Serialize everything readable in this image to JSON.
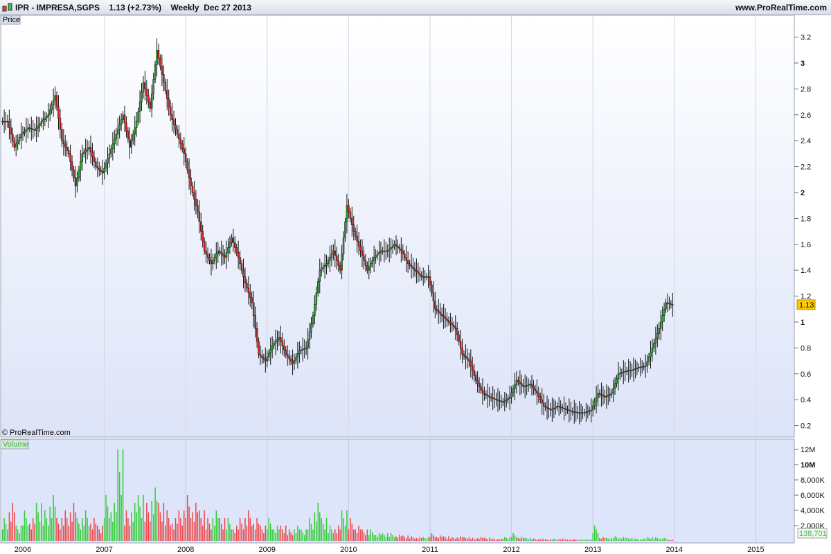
{
  "header": {
    "symbol": "IPR - IMPRESA,SGPS",
    "last": "1.13 (+2.73%)",
    "period": "Weekly",
    "date": "Dec 27 2013",
    "site": "www.ProRealTime.com"
  },
  "price_panel": {
    "label": "Price",
    "copyright": "© ProRealTime.com",
    "last_badge": "1.13"
  },
  "volume_panel": {
    "label": "Volume",
    "last_badge": "138,701"
  },
  "colors": {
    "up": "#22aa22",
    "down": "#dd2222",
    "volume_up": "#33cc33",
    "volume_down": "#ee4444",
    "last_badge_bg": "#ffcc00"
  },
  "chart_data": [
    {
      "type": "candlestick",
      "title": "Price",
      "x_tick_labels": [
        "2006",
        "2007",
        "2008",
        "2009",
        "2010",
        "2011",
        "2012",
        "2013",
        "2014",
        "2015"
      ],
      "y_tick_labels": [
        "0.2",
        "0.4",
        "0.6",
        "0.8",
        "1",
        "1.2",
        "1.4",
        "1.6",
        "1.8",
        "2",
        "2.2",
        "2.4",
        "2.6",
        "2.8",
        "3",
        "3.2"
      ],
      "ylim": [
        0.2,
        3.2
      ],
      "grid": true,
      "dates": [
        "2005-10",
        "2005-11",
        "2005-12",
        "2006-01",
        "2006-02",
        "2006-03",
        "2006-04",
        "2006-05",
        "2006-06",
        "2006-07",
        "2006-08",
        "2006-09",
        "2006-10",
        "2006-11",
        "2006-12",
        "2007-01",
        "2007-02",
        "2007-03",
        "2007-04",
        "2007-05",
        "2007-06",
        "2007-07",
        "2007-08",
        "2007-09",
        "2007-10",
        "2007-11",
        "2007-12",
        "2008-01",
        "2008-02",
        "2008-03",
        "2008-04",
        "2008-05",
        "2008-06",
        "2008-07",
        "2008-08",
        "2008-09",
        "2008-10",
        "2008-11",
        "2008-12",
        "2009-01",
        "2009-02",
        "2009-03",
        "2009-04",
        "2009-05",
        "2009-06",
        "2009-07",
        "2009-08",
        "2009-09",
        "2009-10",
        "2009-11",
        "2009-12",
        "2010-01",
        "2010-02",
        "2010-03",
        "2010-04",
        "2010-05",
        "2010-06",
        "2010-07",
        "2010-08",
        "2010-09",
        "2010-10",
        "2010-11",
        "2010-12",
        "2011-01",
        "2011-02",
        "2011-03",
        "2011-04",
        "2011-05",
        "2011-06",
        "2011-07",
        "2011-08",
        "2011-09",
        "2011-10",
        "2011-11",
        "2011-12",
        "2012-01",
        "2012-02",
        "2012-03",
        "2012-04",
        "2012-05",
        "2012-06",
        "2012-07",
        "2012-08",
        "2012-09",
        "2012-10",
        "2012-11",
        "2012-12",
        "2013-01",
        "2013-02",
        "2013-03",
        "2013-04",
        "2013-05",
        "2013-06",
        "2013-07",
        "2013-08",
        "2013-09",
        "2013-10",
        "2013-11",
        "2013-12"
      ],
      "close": [
        2.55,
        2.35,
        2.45,
        2.5,
        2.48,
        2.55,
        2.6,
        2.75,
        2.4,
        2.3,
        2.05,
        2.3,
        2.35,
        2.2,
        2.15,
        2.3,
        2.45,
        2.6,
        2.35,
        2.55,
        2.85,
        2.65,
        3.1,
        2.85,
        2.6,
        2.45,
        2.3,
        2.05,
        1.85,
        1.55,
        1.45,
        1.55,
        1.5,
        1.65,
        1.5,
        1.3,
        1.15,
        0.75,
        0.7,
        0.82,
        0.88,
        0.75,
        0.68,
        0.78,
        0.8,
        1.05,
        1.4,
        1.45,
        1.55,
        1.4,
        1.9,
        1.7,
        1.55,
        1.4,
        1.5,
        1.55,
        1.55,
        1.6,
        1.55,
        1.45,
        1.4,
        1.35,
        1.35,
        1.1,
        1.05,
        1.0,
        0.95,
        0.75,
        0.7,
        0.55,
        0.45,
        0.42,
        0.4,
        0.38,
        0.42,
        0.55,
        0.5,
        0.52,
        0.45,
        0.35,
        0.32,
        0.35,
        0.33,
        0.31,
        0.3,
        0.3,
        0.32,
        0.45,
        0.42,
        0.45,
        0.6,
        0.62,
        0.63,
        0.65,
        0.66,
        0.8,
        0.95,
        1.15,
        1.13
      ]
    },
    {
      "type": "bar",
      "title": "Volume",
      "y_tick_labels": [
        "2,000K",
        "4,000K",
        "6,000K",
        "8,000K",
        "10M",
        "12M"
      ],
      "ylim": [
        0,
        13
      ],
      "volume_millions": [
        3,
        5,
        2,
        4,
        3,
        5,
        4,
        6,
        3,
        4,
        5,
        3,
        4,
        3,
        2,
        6,
        5,
        12,
        4,
        5,
        6,
        5,
        7,
        5,
        4,
        3,
        4,
        6,
        5,
        4,
        3,
        4,
        3,
        3,
        2,
        3,
        4,
        3,
        2,
        3,
        2,
        2,
        1.5,
        2,
        1.5,
        3,
        5,
        3,
        2,
        2,
        4,
        3,
        2,
        1.5,
        1.5,
        1,
        1,
        1,
        0.8,
        0.7,
        0.6,
        0.5,
        0.5,
        1,
        0.7,
        0.6,
        0.5,
        0.6,
        0.5,
        0.4,
        0.5,
        0.4,
        0.3,
        0.3,
        0.5,
        1,
        0.5,
        0.4,
        0.3,
        0.3,
        0.2,
        0.3,
        0.3,
        0.2,
        0.2,
        0.2,
        0.2,
        2,
        0.5,
        0.4,
        0.6,
        0.5,
        0.4,
        0.3,
        0.3,
        0.5,
        0.5,
        0.4,
        0.14
      ]
    }
  ]
}
